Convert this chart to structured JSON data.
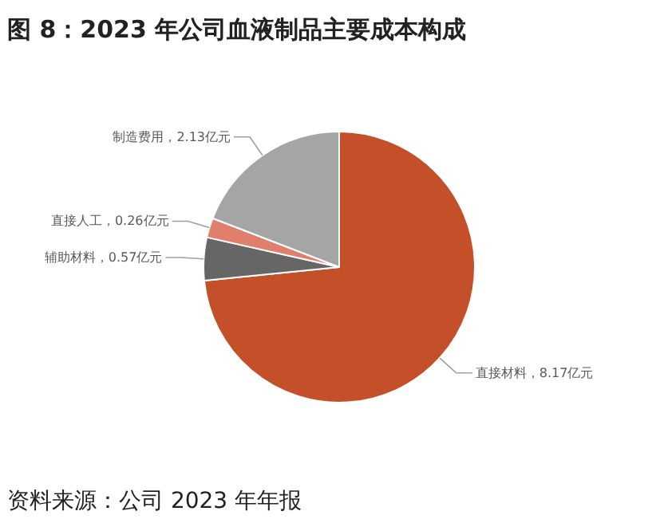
{
  "chart_data": {
    "type": "pie",
    "title": "图 8：2023 年公司血液制品主要成本构成",
    "categories": [
      "直接材料",
      "辅助材料",
      "直接人工",
      "制造费用"
    ],
    "values": [
      8.17,
      0.57,
      0.26,
      2.13
    ],
    "colors": [
      "#c4502a",
      "#666666",
      "#e07f6b",
      "#a5a5a5"
    ],
    "value_labels": [
      "，8.17亿元",
      "，0.57亿元",
      "，0.26亿元",
      "，2.13亿元"
    ],
    "annotations": [
      "资料来源：公司 2023 年年报"
    ]
  }
}
